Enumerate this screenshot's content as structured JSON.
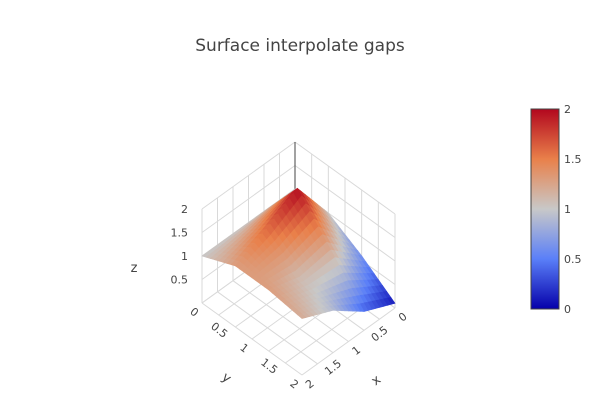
{
  "chart_data": {
    "type": "surface",
    "title": "Surface interpolate gaps",
    "scene": {
      "xaxis": {
        "title": "x",
        "ticks": [
          "0",
          "0.5",
          "1",
          "1.5",
          "2"
        ]
      },
      "yaxis": {
        "title": "y",
        "ticks": [
          "0",
          "0.5",
          "1",
          "1.5",
          "2"
        ]
      },
      "zaxis": {
        "title": "z",
        "ticks": [
          "0.5",
          "1",
          "1.5",
          "2"
        ],
        "range": [
          0,
          2
        ]
      },
      "grid": true
    },
    "x": [
      0,
      1,
      2,
      3
    ],
    "y": [
      0,
      1,
      2,
      3
    ],
    "z": [
      [
        1,
        1,
        1,
        1
      ],
      [
        1,
        2,
        1.6,
        1.3
      ],
      [
        0.6,
        1.2,
        1.1,
        1.3
      ],
      [
        0.1,
        0.4,
        0.9,
        1.2
      ]
    ],
    "colorscale": [
      "#0500aa",
      "#5a7ff8",
      "#c8c8c8",
      "#e9804a",
      "#b2071e"
    ],
    "colorbar": {
      "ticks": [
        "0",
        "0.5",
        "1",
        "1.5",
        "2"
      ],
      "range": [
        0,
        2
      ]
    }
  }
}
